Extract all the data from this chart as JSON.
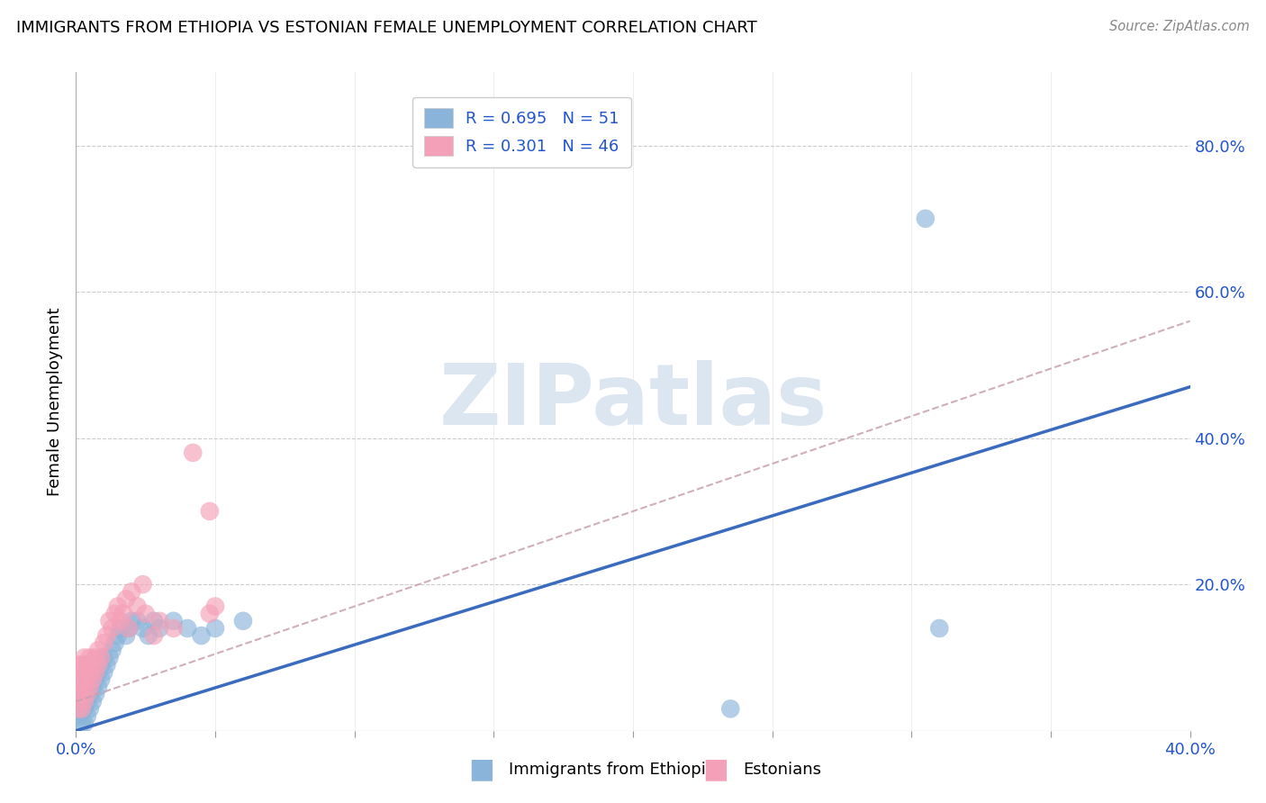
{
  "title": "IMMIGRANTS FROM ETHIOPIA VS ESTONIAN FEMALE UNEMPLOYMENT CORRELATION CHART",
  "source": "Source: ZipAtlas.com",
  "ylabel": "Female Unemployment",
  "xlim": [
    0.0,
    0.4
  ],
  "ylim": [
    0.0,
    0.9
  ],
  "x_tick_pos": [
    0.0,
    0.05,
    0.1,
    0.15,
    0.2,
    0.25,
    0.3,
    0.35,
    0.4
  ],
  "x_tick_labels": [
    "0.0%",
    "",
    "",
    "",
    "",
    "",
    "",
    "",
    "40.0%"
  ],
  "y_ticks_right": [
    0.0,
    0.2,
    0.4,
    0.6,
    0.8
  ],
  "y_tick_labels_right": [
    "",
    "20.0%",
    "40.0%",
    "60.0%",
    "80.0%"
  ],
  "blue_color": "#8ab4d9",
  "blue_dark": "#3a6bbf",
  "pink_color": "#f4a0b8",
  "pink_dark": "#cc6688",
  "pink_dash_color": "#c8a0b0",
  "watermark_color": "#dce6f0",
  "watermark": "ZIPatlas",
  "blue_line_x": [
    0.0,
    0.4
  ],
  "blue_line_y": [
    0.0,
    0.47
  ],
  "pink_line_x": [
    0.0,
    0.4
  ],
  "pink_line_y": [
    0.04,
    0.56
  ],
  "blue_scatter_x": [
    0.001,
    0.001,
    0.002,
    0.002,
    0.002,
    0.003,
    0.003,
    0.003,
    0.003,
    0.004,
    0.004,
    0.004,
    0.004,
    0.005,
    0.005,
    0.005,
    0.005,
    0.006,
    0.006,
    0.006,
    0.007,
    0.007,
    0.007,
    0.008,
    0.008,
    0.009,
    0.009,
    0.01,
    0.01,
    0.011,
    0.012,
    0.013,
    0.014,
    0.015,
    0.016,
    0.018,
    0.019,
    0.02,
    0.022,
    0.024,
    0.026,
    0.028,
    0.03,
    0.035,
    0.04,
    0.045,
    0.05,
    0.06,
    0.235,
    0.305,
    0.31
  ],
  "blue_scatter_y": [
    0.02,
    0.04,
    0.01,
    0.03,
    0.05,
    0.01,
    0.03,
    0.05,
    0.07,
    0.02,
    0.04,
    0.06,
    0.08,
    0.03,
    0.05,
    0.07,
    0.09,
    0.04,
    0.06,
    0.08,
    0.05,
    0.07,
    0.09,
    0.06,
    0.08,
    0.07,
    0.09,
    0.08,
    0.1,
    0.09,
    0.1,
    0.11,
    0.12,
    0.13,
    0.14,
    0.13,
    0.14,
    0.15,
    0.15,
    0.14,
    0.13,
    0.15,
    0.14,
    0.15,
    0.14,
    0.13,
    0.14,
    0.15,
    0.03,
    0.7,
    0.14
  ],
  "pink_scatter_x": [
    0.001,
    0.001,
    0.001,
    0.001,
    0.002,
    0.002,
    0.002,
    0.002,
    0.003,
    0.003,
    0.003,
    0.003,
    0.004,
    0.004,
    0.004,
    0.005,
    0.005,
    0.005,
    0.006,
    0.006,
    0.007,
    0.007,
    0.008,
    0.008,
    0.009,
    0.01,
    0.011,
    0.012,
    0.013,
    0.014,
    0.015,
    0.016,
    0.017,
    0.018,
    0.019,
    0.02,
    0.022,
    0.024,
    0.025,
    0.028,
    0.03,
    0.035,
    0.042,
    0.048,
    0.048,
    0.05
  ],
  "pink_scatter_y": [
    0.03,
    0.05,
    0.07,
    0.09,
    0.03,
    0.05,
    0.07,
    0.09,
    0.04,
    0.06,
    0.08,
    0.1,
    0.05,
    0.07,
    0.09,
    0.06,
    0.08,
    0.1,
    0.07,
    0.09,
    0.08,
    0.1,
    0.09,
    0.11,
    0.1,
    0.12,
    0.13,
    0.15,
    0.14,
    0.16,
    0.17,
    0.15,
    0.16,
    0.18,
    0.14,
    0.19,
    0.17,
    0.2,
    0.16,
    0.13,
    0.15,
    0.14,
    0.38,
    0.16,
    0.3,
    0.17
  ],
  "background_color": "#ffffff",
  "grid_color": "#cccccc",
  "legend_text_color": "#2255cc"
}
